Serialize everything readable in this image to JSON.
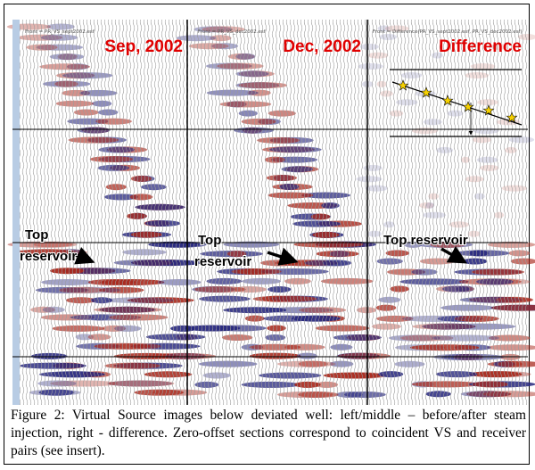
{
  "panels": [
    {
      "header": "Front = PR_VS_sept2002.esf",
      "title": "Sep, 2002",
      "annotation_lines": [
        "Top",
        "reservoir"
      ]
    },
    {
      "header": "Front = PR_VS_dec2002.esf",
      "title": "Dec, 2002",
      "annotation_lines": [
        "Top",
        "reservoir"
      ]
    },
    {
      "header": "Front = Difference(PR_VS_sept2002.esf, PR_VS_dec2002.esf)",
      "title": "Difference",
      "annotation_lines": [
        "Top reservoir"
      ]
    }
  ],
  "caption": "Figure 2: Virtual Source images below deviated well: left/middle – before/after steam injection, right - difference. Zero-offset sections correspond to coincident VS and receiver pairs (see insert)."
}
